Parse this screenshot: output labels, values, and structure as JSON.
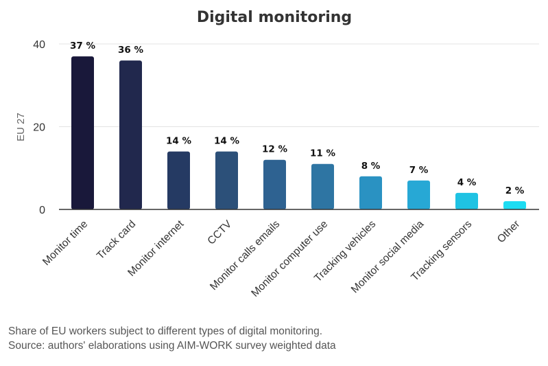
{
  "chart_data": {
    "type": "bar",
    "title": "Digital monitoring",
    "xlabel": "",
    "ylabel": "EU 27",
    "ylim": [
      0,
      40
    ],
    "yticks": [
      0,
      20,
      40
    ],
    "grid": true,
    "legend": "none",
    "categories": [
      "Monitor time",
      "Track card",
      "Monitor internet",
      "CCTV",
      "Monitor calls emails",
      "Monitor computer use",
      "Tracking vehicles",
      "Monitor social media",
      "Tracking sensors",
      "Other"
    ],
    "values": [
      37,
      36,
      14,
      14,
      12,
      11,
      8,
      7,
      4,
      2
    ],
    "data_labels": [
      "37 %",
      "36 %",
      "14 %",
      "14 %",
      "12 %",
      "11 %",
      "8 %",
      "7 %",
      "4 %",
      "2 %"
    ],
    "colors": [
      "#19183a",
      "#21284d",
      "#253a63",
      "#2c5079",
      "#2e6291",
      "#2e75a3",
      "#2a92c2",
      "#27a8d5",
      "#1fc2e3",
      "#1ddcf2"
    ]
  },
  "caption": {
    "line1": "Share of EU workers subject to different types of digital monitoring.",
    "line2": "Source: authors' elaborations using AIM-WORK survey weighted data"
  }
}
